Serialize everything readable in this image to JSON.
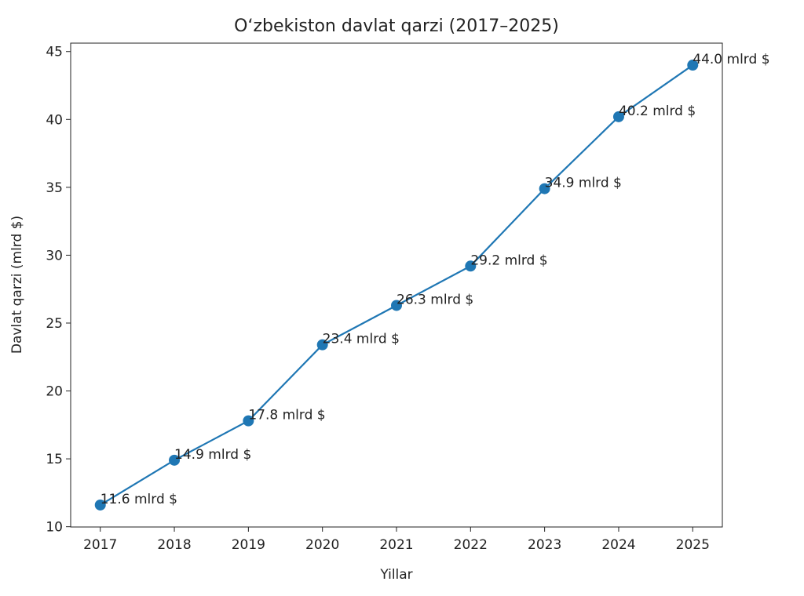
{
  "chart_data": {
    "type": "line",
    "title": "O‘zbekiston davlat qarzi (2017–2025)",
    "x_label": "Yillar",
    "y_label": "Davlat qarzi (mlrd $)",
    "x": [
      2017,
      2018,
      2019,
      2020,
      2021,
      2022,
      2023,
      2024,
      2025
    ],
    "values": [
      11.6,
      14.9,
      17.8,
      23.4,
      26.3,
      29.2,
      34.9,
      40.2,
      44.0
    ],
    "value_labels": [
      "11.6 mlrd $",
      "14.9 mlrd $",
      "17.8 mlrd $",
      "23.4 mlrd $",
      "26.3 mlrd $",
      "29.2 mlrd $",
      "34.9 mlrd $",
      "40.2 mlrd $",
      "44.0 mlrd $"
    ],
    "color": "#1f77b4",
    "xlim": [
      2016.6,
      2025.4
    ],
    "xticks": [
      2017,
      2018,
      2019,
      2020,
      2021,
      2022,
      2023,
      2024,
      2025
    ],
    "ylim": [
      9.98,
      45.62
    ],
    "yticks": [
      10,
      15,
      20,
      25,
      30,
      35,
      40,
      45
    ],
    "grid": false
  }
}
